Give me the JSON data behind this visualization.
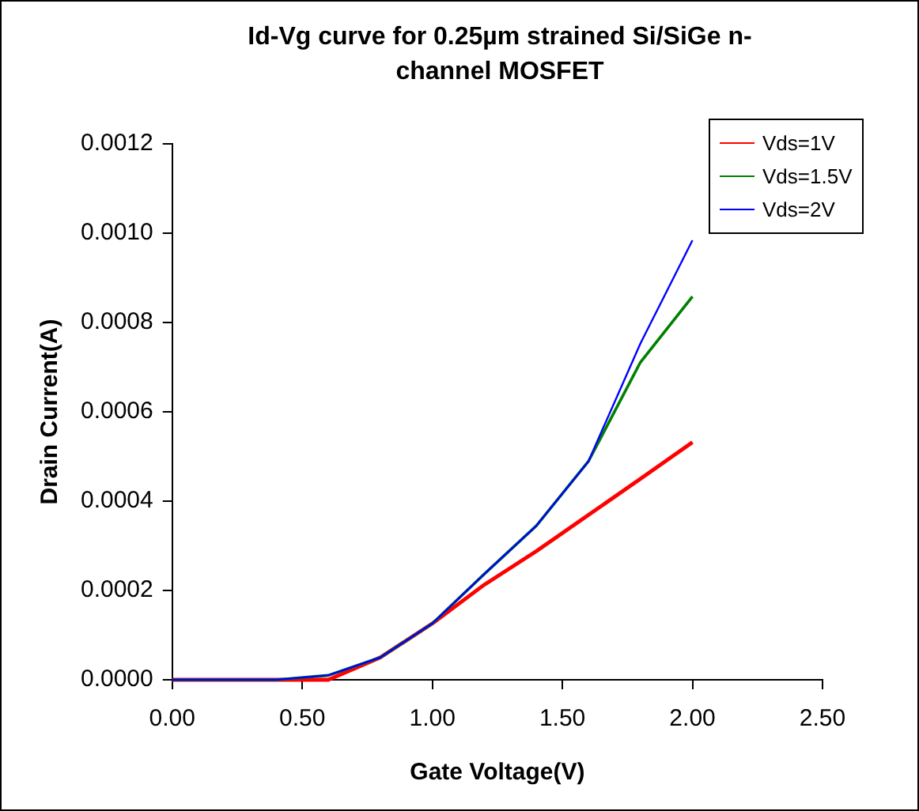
{
  "chart_data": {
    "type": "line",
    "title": "Id-Vg curve for 0.25µm strained Si/SiGe n-channel MOSFET",
    "xlabel": "Gate Voltage(V)",
    "ylabel": "Drain Current(A)",
    "x": [
      0,
      0.2,
      0.4,
      0.6,
      0.8,
      1.0,
      1.2,
      1.4,
      1.6,
      1.8,
      2.0
    ],
    "series": [
      {
        "name": "Vds=1V",
        "color": "#ff0000",
        "values": [
          0,
          0,
          0,
          0,
          5e-05,
          0.000126,
          0.000213,
          0.000288,
          0.000369,
          0.00045,
          0.000532
        ]
      },
      {
        "name": "Vds=1.5V",
        "color": "#008000",
        "values": [
          0,
          0,
          0,
          1e-05,
          5e-05,
          0.000126,
          0.000237,
          0.000345,
          0.000489,
          0.000711,
          0.000858
        ]
      },
      {
        "name": "Vds=2V",
        "color": "#0000ff",
        "values": [
          0,
          0,
          0,
          1e-05,
          5e-05,
          0.000126,
          0.000237,
          0.000345,
          0.000489,
          0.000753,
          0.000984
        ]
      }
    ],
    "xlim": [
      0,
      2.5
    ],
    "xticks": [
      {
        "value": 0,
        "label": "0.00"
      },
      {
        "value": 0.5,
        "label": "0.50"
      },
      {
        "value": 1,
        "label": "1.00"
      },
      {
        "value": 1.5,
        "label": "1.50"
      },
      {
        "value": 2,
        "label": "2.00"
      },
      {
        "value": 2.5,
        "label": "2.50"
      }
    ],
    "ylim": [
      0,
      0.0012
    ],
    "yticks": [
      {
        "value": 0,
        "label": "0.0000"
      },
      {
        "value": 0.0002,
        "label": "0.0002"
      },
      {
        "value": 0.0004,
        "label": "0.0004"
      },
      {
        "value": 0.0006,
        "label": "0.0006"
      },
      {
        "value": 0.0008,
        "label": "0.0008"
      },
      {
        "value": 0.001,
        "label": "0.0010"
      },
      {
        "value": 0.0012,
        "label": "0.0012"
      }
    ],
    "grid": false,
    "legend": "top right",
    "marker": "none",
    "line_style": "solid"
  }
}
